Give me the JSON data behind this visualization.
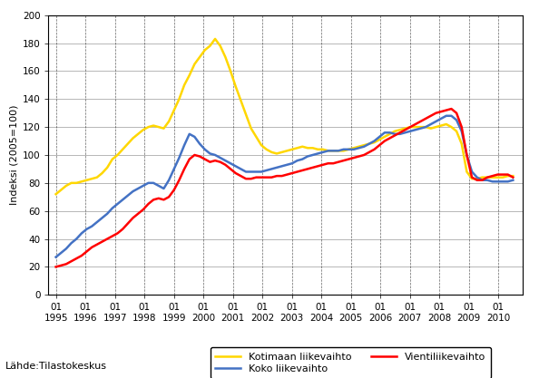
{
  "title": "",
  "ylabel": "Indeksi (2005=100)",
  "source_label": "Lähde:Tilastokeskus",
  "ylim": [
    0,
    200
  ],
  "yticks": [
    0,
    20,
    40,
    60,
    80,
    100,
    120,
    140,
    160,
    180,
    200
  ],
  "legend": [
    {
      "label": "Koko liikevaihto",
      "color": "#4472C4"
    },
    {
      "label": "Kotimaan liikevaihto",
      "color": "#FFD700"
    },
    {
      "label": "Vientiliikevaihto",
      "color": "#FF0000"
    }
  ],
  "koko": [
    27,
    30,
    33,
    37,
    40,
    44,
    47,
    49,
    52,
    55,
    58,
    62,
    65,
    68,
    71,
    74,
    76,
    78,
    80,
    80,
    78,
    76,
    82,
    90,
    98,
    107,
    115,
    113,
    108,
    104,
    101,
    100,
    98,
    96,
    94,
    92,
    90,
    88,
    88,
    88,
    88,
    89,
    90,
    91,
    92,
    93,
    94,
    96,
    97,
    99,
    100,
    101,
    102,
    103,
    103,
    103,
    104,
    104,
    104,
    105,
    106,
    108,
    110,
    113,
    116,
    116,
    115,
    115,
    116,
    117,
    118,
    119,
    120,
    122,
    124,
    126,
    128,
    128,
    125,
    117,
    100,
    88,
    84,
    82,
    82,
    81,
    81,
    81,
    81,
    82
  ],
  "kotimaan": [
    72,
    75,
    78,
    80,
    80,
    81,
    82,
    83,
    84,
    87,
    91,
    97,
    100,
    104,
    108,
    112,
    115,
    118,
    120,
    121,
    120,
    119,
    124,
    132,
    140,
    150,
    157,
    165,
    170,
    175,
    178,
    183,
    178,
    170,
    160,
    149,
    139,
    129,
    119,
    113,
    107,
    104,
    102,
    101,
    102,
    103,
    104,
    105,
    106,
    105,
    105,
    104,
    104,
    103,
    103,
    103,
    103,
    104,
    105,
    106,
    107,
    108,
    109,
    111,
    113,
    115,
    117,
    118,
    119,
    120,
    120,
    120,
    120,
    119,
    120,
    121,
    122,
    120,
    117,
    108,
    88,
    83,
    83,
    84,
    84,
    84,
    84,
    84,
    85,
    85
  ],
  "vienti": [
    20,
    21,
    22,
    24,
    26,
    28,
    31,
    34,
    36,
    38,
    40,
    42,
    44,
    47,
    51,
    55,
    58,
    61,
    65,
    68,
    69,
    68,
    70,
    75,
    82,
    90,
    97,
    100,
    99,
    97,
    95,
    96,
    95,
    93,
    90,
    87,
    85,
    83,
    83,
    84,
    84,
    84,
    84,
    85,
    85,
    86,
    87,
    88,
    89,
    90,
    91,
    92,
    93,
    94,
    94,
    95,
    96,
    97,
    98,
    99,
    100,
    102,
    104,
    107,
    110,
    112,
    114,
    116,
    118,
    120,
    122,
    124,
    126,
    128,
    130,
    131,
    132,
    133,
    130,
    120,
    100,
    84,
    82,
    82,
    84,
    85,
    86,
    86,
    86,
    84
  ],
  "n_points": 90,
  "start_year": 1995,
  "end_year": 2010,
  "end_month": 7
}
